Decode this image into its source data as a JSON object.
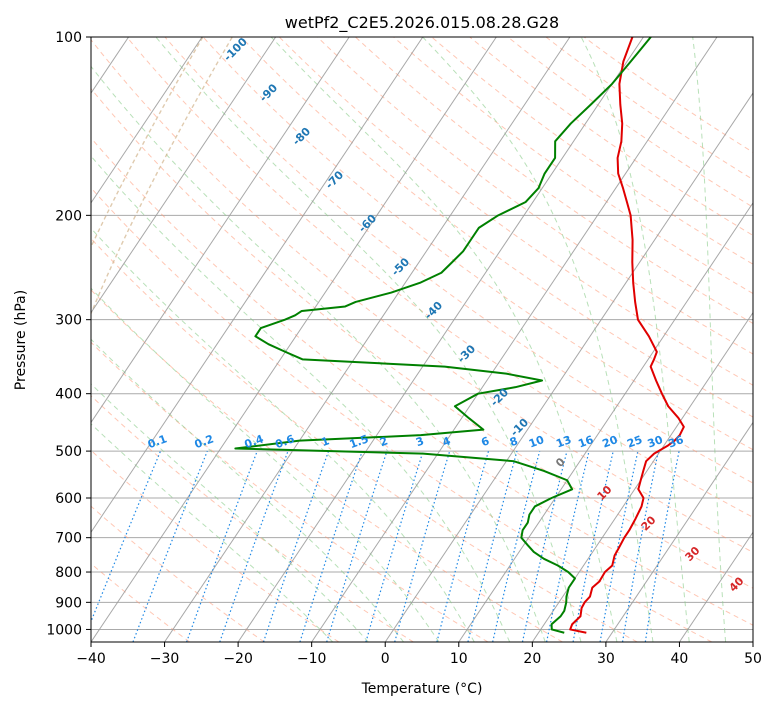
{
  "chart_data": {
    "type": "line",
    "title": "wetPf2_C2E5.2026.015.08.28.G28",
    "xlabel": "Temperature (°C)",
    "ylabel": "Pressure (hPa)",
    "xlim": [
      -40,
      50
    ],
    "ylim": [
      1050,
      100
    ],
    "x_ticks": [
      "−40",
      "−30",
      "−20",
      "−10",
      "0",
      "10",
      "20",
      "30",
      "40",
      "50"
    ],
    "y_ticks": [
      "100",
      "200",
      "300",
      "400",
      "500",
      "600",
      "700",
      "800",
      "900",
      "1000"
    ],
    "grid": true,
    "skew_lines_temperature": [
      -120,
      -110,
      -100,
      -90,
      -80,
      -70,
      -60,
      -50,
      -40,
      -30,
      -20,
      -10,
      0,
      10,
      20,
      30,
      40,
      50
    ],
    "dry_adiabat_labels": [
      "-100",
      "-90",
      "-80",
      "-70",
      "-60",
      "-50",
      "-40",
      "-30",
      "-20",
      "-10",
      "0",
      "10",
      "20",
      "30",
      "40"
    ],
    "mixing_ratio_labels": [
      "0.1",
      "0.2",
      "0.4",
      "0.6",
      "1",
      "1.5",
      "2",
      "3",
      "4",
      "6",
      "8",
      "10",
      "13",
      "16",
      "20",
      "25",
      "30",
      "36"
    ],
    "mixing_ratio_values": [
      0.1,
      0.2,
      0.4,
      0.6,
      1,
      1.5,
      2,
      3,
      4,
      6,
      8,
      10,
      13,
      16,
      20,
      25,
      30,
      36
    ],
    "colors": {
      "temperature": "#e00000",
      "dewpoint": "#008000",
      "dry_adiabat": "#ff9977",
      "moist_adiabat": "#88cc88",
      "mixing_ratio": "#1e88e5",
      "isotherm": "#999999",
      "isobar": "#aaaaaa",
      "lcl_curve": "#d2b48c",
      "theta_label": "#1f77b4",
      "temp_label": "#d62728"
    },
    "series": [
      {
        "name": "temperature",
        "p": [
          1013,
          1000,
          980,
          950,
          920,
          900,
          880,
          850,
          830,
          800,
          780,
          750,
          730,
          700,
          680,
          650,
          620,
          600,
          580,
          560,
          540,
          520,
          505,
          490,
          480,
          470,
          455,
          440,
          420,
          400,
          380,
          360,
          350,
          340,
          320,
          300,
          280,
          260,
          240,
          220,
          200,
          190,
          180,
          170,
          160,
          150,
          140,
          130,
          120,
          110,
          100
        ],
        "x": [
          26.5,
          24,
          23.8,
          24.2,
          23.6,
          23.5,
          23.7,
          23.2,
          23.6,
          23.5,
          23.9,
          23.3,
          23.2,
          23,
          23,
          22.8,
          22.5,
          22,
          20.5,
          20,
          19.5,
          19,
          19.4,
          20.5,
          21,
          21.2,
          21,
          19.5,
          17,
          15,
          13,
          11,
          10.8,
          10.5,
          8,
          5,
          3,
          1,
          -1,
          -3,
          -5.5,
          -7.2,
          -9,
          -11,
          -12.5,
          -13.5,
          -15,
          -17,
          -19,
          -20.5,
          -21.5
        ]
      },
      {
        "name": "dewpoint",
        "p": [
          1013,
          1000,
          980,
          950,
          930,
          900,
          880,
          850,
          820,
          800,
          780,
          760,
          740,
          720,
          700,
          680,
          660,
          640,
          620,
          600,
          580,
          560,
          540,
          520,
          505,
          495,
          480,
          470,
          460,
          440,
          420,
          410,
          400,
          390,
          380,
          370,
          360,
          350,
          340,
          330,
          320,
          310,
          300,
          295,
          290,
          285,
          280,
          270,
          260,
          250,
          240,
          230,
          220,
          210,
          200,
          190,
          180,
          170,
          160,
          150,
          140,
          130,
          120,
          110,
          100
        ],
        "x": [
          23.5,
          21.5,
          21,
          21.5,
          21.5,
          21,
          20.5,
          20,
          20,
          18.5,
          16.5,
          14,
          12,
          10.5,
          9,
          8.5,
          8.5,
          8,
          8,
          9.5,
          11.5,
          10,
          6,
          1,
          -12,
          -38,
          -30,
          -14,
          -6,
          -9,
          -12,
          -11,
          -10,
          -5.5,
          -2.5,
          -8,
          -17,
          -37,
          -40,
          -43,
          -45.5,
          -45.5,
          -43,
          -42,
          -41.5,
          -36,
          -35,
          -31,
          -28,
          -26,
          -25.5,
          -25,
          -25,
          -25,
          -23.5,
          -21,
          -20.5,
          -21,
          -21,
          -22.5,
          -22,
          -21,
          -20,
          -19.5,
          -19
        ]
      }
    ]
  }
}
